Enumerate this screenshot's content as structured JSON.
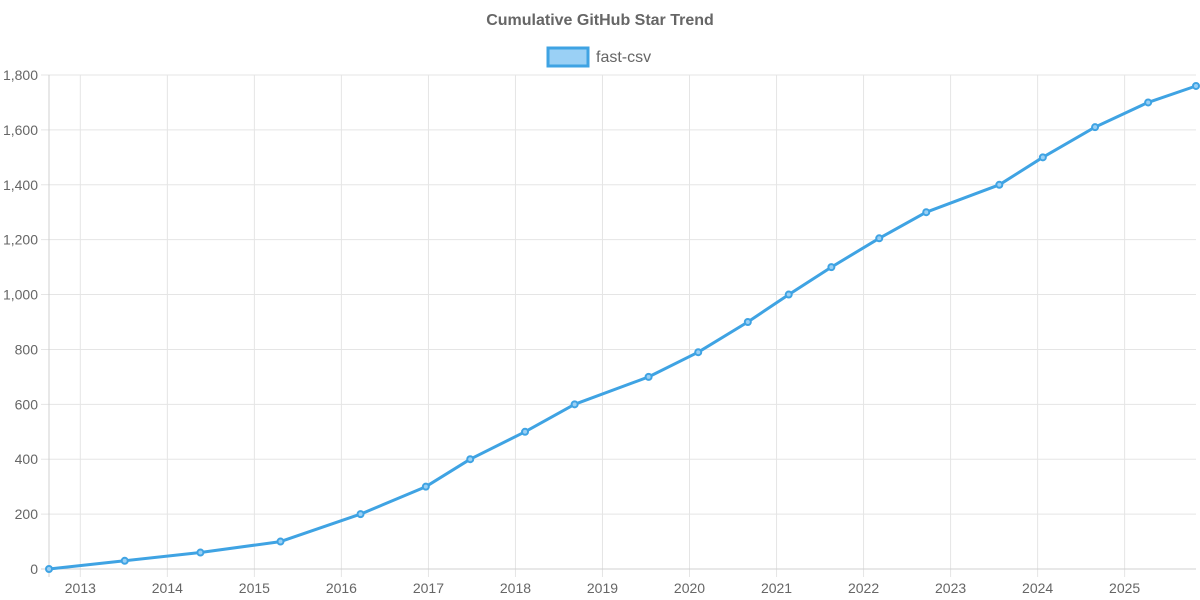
{
  "chart_data": {
    "type": "line",
    "title": "Cumulative GitHub Star Trend",
    "xlabel": "",
    "ylabel": "",
    "grid": true,
    "legend_position": "top-center",
    "x_ticks": [
      "2013",
      "2014",
      "2015",
      "2016",
      "2017",
      "2018",
      "2019",
      "2020",
      "2021",
      "2022",
      "2023",
      "2024",
      "2025"
    ],
    "y_ticks": [
      "0",
      "200",
      "400",
      "600",
      "800",
      "1,000",
      "1,200",
      "1,400",
      "1,600",
      "1,800"
    ],
    "ylim": [
      0,
      1800
    ],
    "xlim": [
      2012.64,
      2025.82
    ],
    "series": [
      {
        "name": "fast-csv",
        "color": "#3fa3e3",
        "fill": "#9ad0f5",
        "points": [
          {
            "x": 2012.64,
            "y": 0
          },
          {
            "x": 2013.51,
            "y": 30
          },
          {
            "x": 2014.38,
            "y": 60
          },
          {
            "x": 2015.3,
            "y": 100
          },
          {
            "x": 2016.22,
            "y": 200
          },
          {
            "x": 2016.97,
            "y": 300
          },
          {
            "x": 2017.48,
            "y": 400
          },
          {
            "x": 2018.11,
            "y": 500
          },
          {
            "x": 2018.68,
            "y": 600
          },
          {
            "x": 2019.53,
            "y": 700
          },
          {
            "x": 2020.1,
            "y": 790
          },
          {
            "x": 2020.67,
            "y": 900
          },
          {
            "x": 2021.14,
            "y": 1000
          },
          {
            "x": 2021.63,
            "y": 1100
          },
          {
            "x": 2022.18,
            "y": 1205
          },
          {
            "x": 2022.72,
            "y": 1300
          },
          {
            "x": 2023.56,
            "y": 1400
          },
          {
            "x": 2024.06,
            "y": 1500
          },
          {
            "x": 2024.66,
            "y": 1610
          },
          {
            "x": 2025.27,
            "y": 1700
          },
          {
            "x": 2025.82,
            "y": 1760
          }
        ]
      }
    ]
  }
}
